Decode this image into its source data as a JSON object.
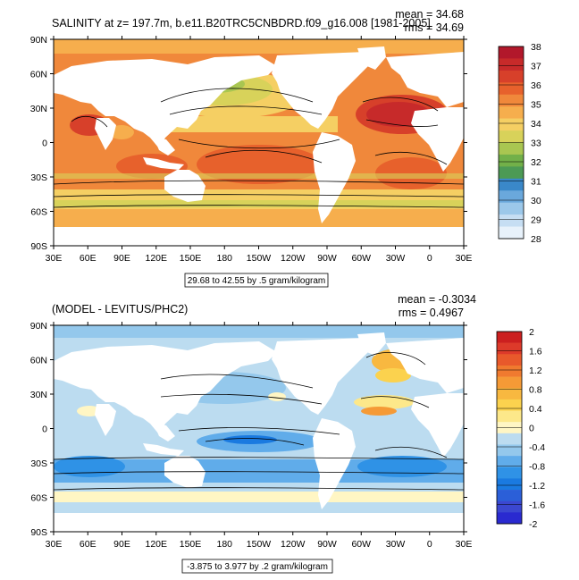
{
  "panels": [
    {
      "title": "SALINITY at z= 197.7m, b.e11.B20TRC5CNBDRD.f09_g16.008 [1981-2005]",
      "mean_text": "mean = 34.68",
      "rms_text": "rms = 34.69",
      "footer": "29.68 to 42.55 by .5 gram/kilogram",
      "lat_labels": [
        "90N",
        "60N",
        "30N",
        "0",
        "30S",
        "60S",
        "90S"
      ],
      "lon_labels": [
        "30E",
        "60E",
        "90E",
        "120E",
        "150E",
        "180",
        "150W",
        "120W",
        "90W",
        "60W",
        "30W",
        "0",
        "30E"
      ],
      "colorbar_labels": [
        "38",
        "37",
        "36",
        "35",
        "34",
        "33",
        "32",
        "31",
        "30",
        "29",
        "28"
      ],
      "colorbar_colors": [
        "#b2182b",
        "#c72a2a",
        "#d7402a",
        "#e7612c",
        "#f0883b",
        "#f6ae4d",
        "#f5cf63",
        "#d8d25a",
        "#a9c651",
        "#72b049",
        "#4c9a55",
        "#3a88c9",
        "#6aa8dc",
        "#9cc8ea",
        "#c6def3",
        "#e8f2fb"
      ]
    },
    {
      "title": "(MODEL - LEVITUS/PHC2)",
      "mean_text": "mean = -0.3034",
      "rms_text": "rms = 0.4967",
      "footer": "-3.875 to 3.977 by .2 gram/kilogram",
      "lat_labels": [
        "90N",
        "60N",
        "30N",
        "0",
        "30S",
        "60S",
        "90S"
      ],
      "lon_labels": [
        "30E",
        "60E",
        "90E",
        "120E",
        "150E",
        "180",
        "150W",
        "120W",
        "90W",
        "60W",
        "30W",
        "0",
        "30E"
      ],
      "colorbar_labels": [
        "2",
        "1.6",
        "1.2",
        "0.8",
        "0.4",
        "0",
        "-0.4",
        "-0.8",
        "-1.2",
        "-1.6",
        "-2"
      ],
      "colorbar_colors": [
        "#cc1f1f",
        "#dd3a2a",
        "#e8592b",
        "#f07a2f",
        "#f59a36",
        "#f8b840",
        "#fbd24e",
        "#fde88a",
        "#fff6c4",
        "#bcdcf0",
        "#94c8ec",
        "#60acea",
        "#2f92e6",
        "#1a7ae0",
        "#2b5fd8",
        "#3b47d0",
        "#2a2ad0"
      ]
    }
  ]
}
